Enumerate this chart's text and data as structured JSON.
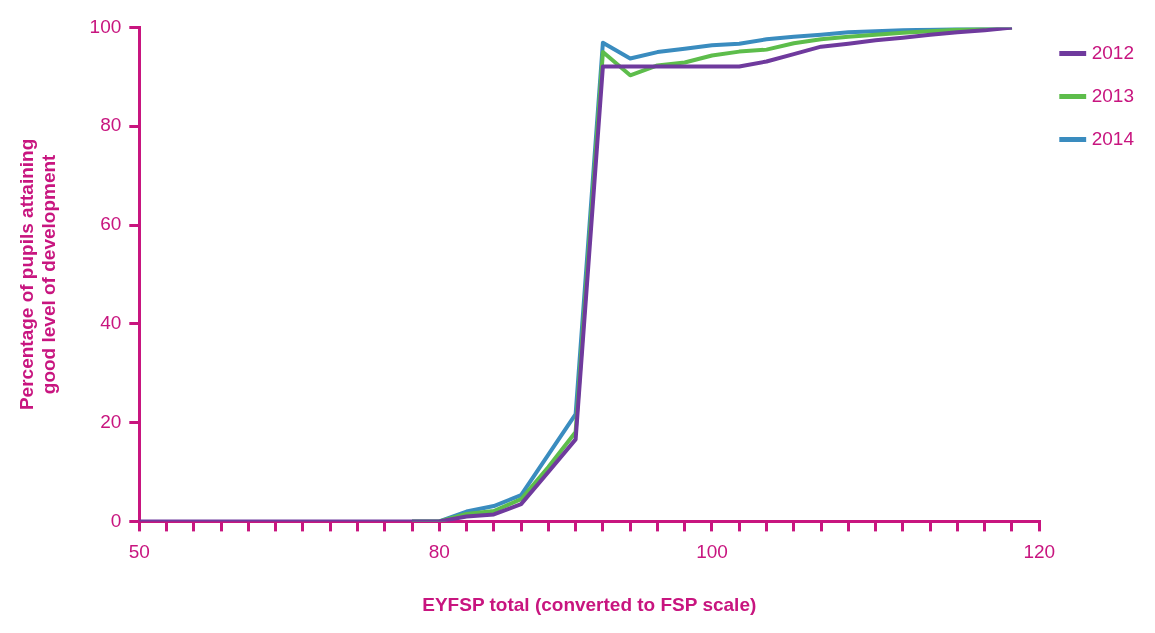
{
  "chart_data": {
    "type": "line",
    "xlabel": "EYFSP total (converted to FSP scale)",
    "ylabel": "Percentage of pupils attaining\ngood level of development",
    "categories": [
      "50",
      null,
      null,
      null,
      null,
      null,
      null,
      null,
      null,
      null,
      null,
      "80",
      null,
      null,
      null,
      null,
      null,
      null,
      null,
      null,
      null,
      "100",
      null,
      null,
      null,
      null,
      null,
      null,
      null,
      null,
      null,
      null,
      null,
      "120"
    ],
    "series": [
      {
        "name": "2012",
        "color": "#6f3a9d",
        "values": [
          0,
          0,
          0,
          0,
          0,
          0,
          0,
          0,
          0,
          0,
          0,
          0,
          1,
          1.4,
          3.5,
          10,
          16.6,
          92.1,
          92.1,
          92.1,
          92.1,
          92.1,
          92.1,
          93.1,
          94.6,
          96.1,
          96.7,
          97.4,
          97.9,
          98.5,
          99,
          99.4,
          100,
          null
        ]
      },
      {
        "name": "2013",
        "color": "#5dbd4b",
        "values": [
          null,
          null,
          null,
          null,
          null,
          null,
          null,
          null,
          null,
          null,
          0,
          0,
          1.5,
          2.1,
          4.5,
          11,
          18.1,
          95,
          90.3,
          92.3,
          92.9,
          94.3,
          95.1,
          95.5,
          96.8,
          97.6,
          98.1,
          98.5,
          98.9,
          99.2,
          99.5,
          99.7,
          100,
          null
        ]
      },
      {
        "name": "2014",
        "color": "#3a8cbf",
        "values": [
          null,
          null,
          null,
          null,
          null,
          null,
          null,
          null,
          null,
          null,
          0,
          0,
          2,
          3.1,
          5.3,
          13.5,
          21.7,
          96.9,
          93.7,
          95,
          95.7,
          96.4,
          96.7,
          97.6,
          98.1,
          98.5,
          99,
          99.2,
          99.4,
          99.5,
          99.7,
          99.8,
          100,
          null
        ]
      }
    ],
    "ylim": [
      0,
      100
    ],
    "yticks": [
      0,
      20,
      40,
      60,
      80,
      100
    ],
    "grid": false,
    "legend": "top right",
    "marker": "none",
    "line_style": "solid"
  }
}
